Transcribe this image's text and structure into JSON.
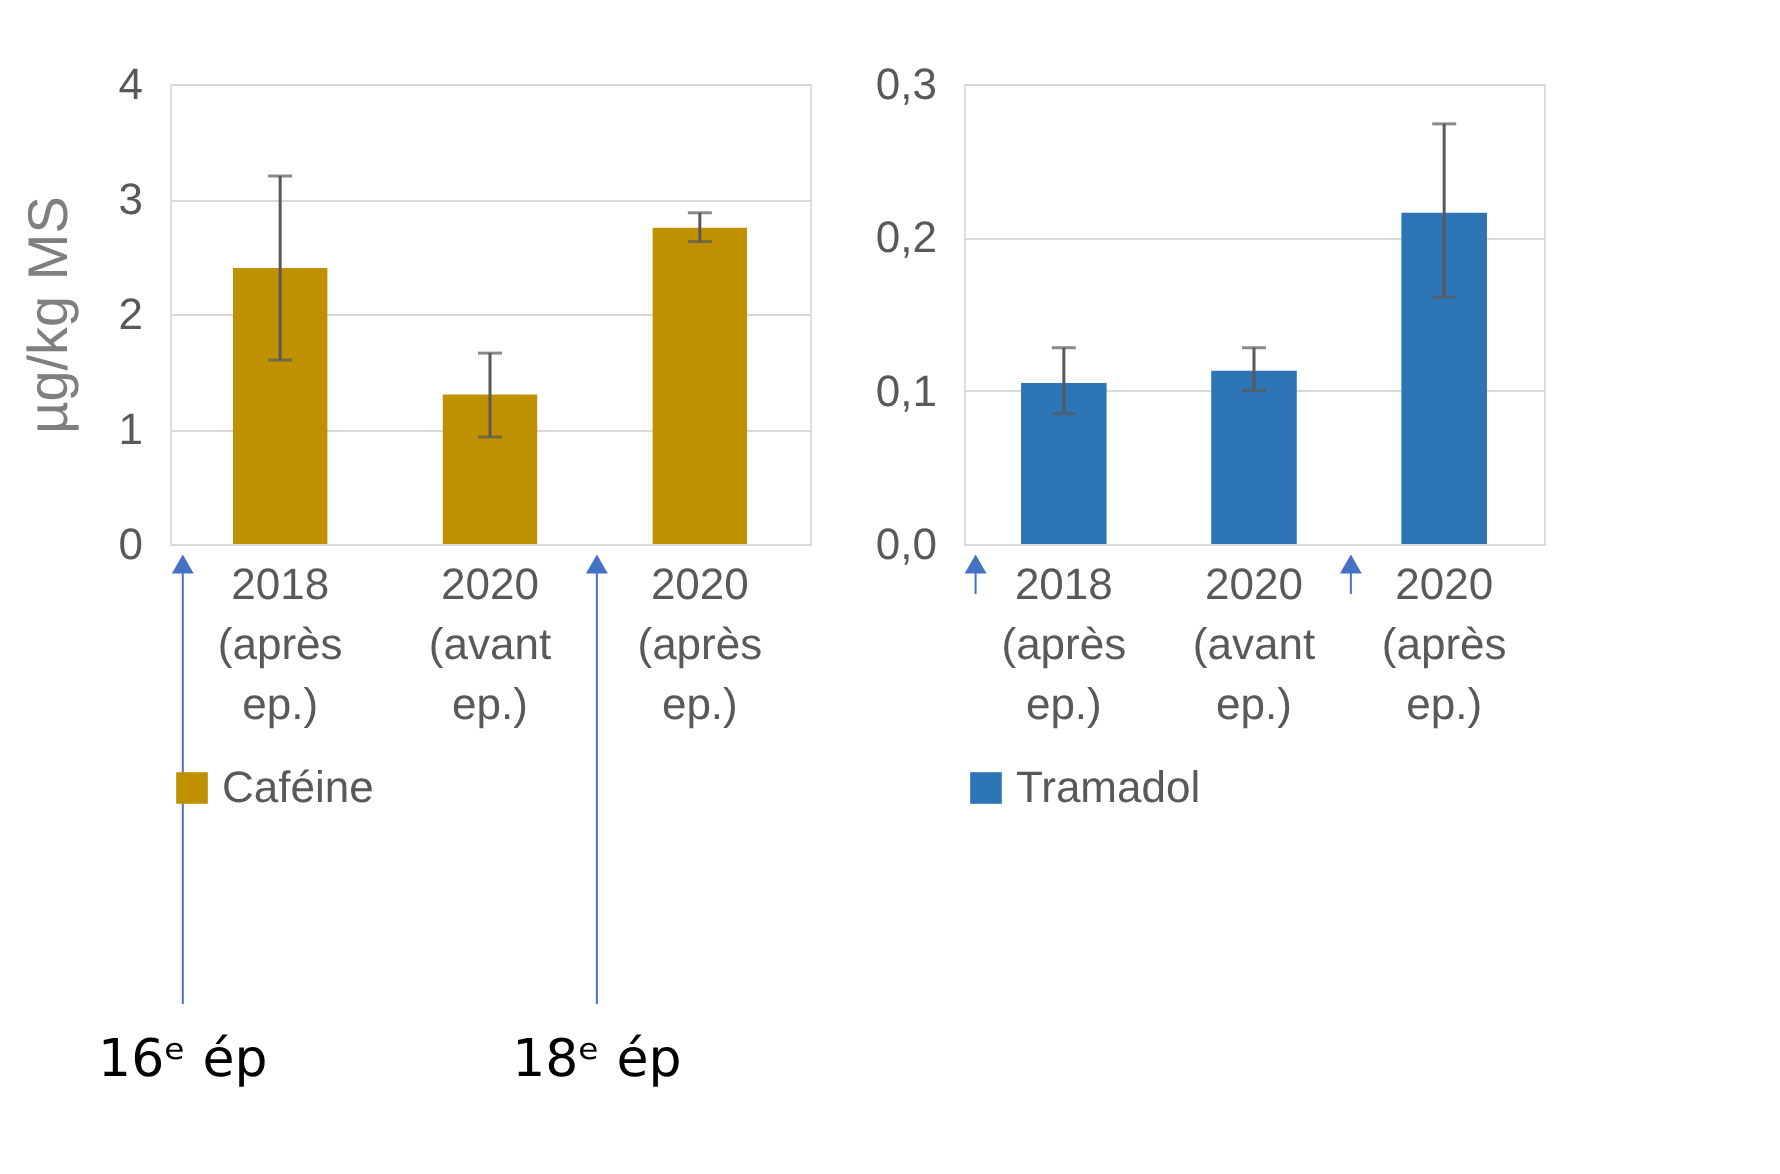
{
  "chart_data": [
    {
      "type": "bar",
      "ylabel": "µg/kg MS",
      "categories": [
        "2018 (après ep.)",
        "2020 (avant ep.)",
        "2020 (après ep.)"
      ],
      "series": [
        {
          "name": "Caféine",
          "color": "#bf9000",
          "values": [
            2.4,
            1.3,
            2.75
          ],
          "errors": [
            [
              1.6,
              3.2
            ],
            [
              0.93,
              1.66
            ],
            [
              2.63,
              2.88
            ]
          ]
        }
      ],
      "ylim": [
        0,
        4
      ],
      "yticks": [
        0,
        1,
        2,
        3,
        4
      ],
      "grid": "y",
      "legend": "bottom",
      "annotations": [
        "16ᵉ ép",
        "18ᵉ ép"
      ]
    },
    {
      "type": "bar",
      "categories": [
        "2018 (après ep.)",
        "2020 (avant ep.)",
        "2020 (après ep.)"
      ],
      "series": [
        {
          "name": "Tramadol",
          "color": "#2e75b6",
          "values": [
            0.105,
            0.113,
            0.216
          ],
          "errors": [
            [
              0.085,
              0.128
            ],
            [
              0.1,
              0.128
            ],
            [
              0.161,
              0.274
            ]
          ]
        }
      ],
      "ylim": [
        0,
        0.3
      ],
      "yticks": [
        {
          "value": 0,
          "label": "0,0"
        },
        {
          "value": 0.1,
          "label": "0,1"
        },
        {
          "value": 0.2,
          "label": "0,2"
        },
        {
          "value": 0.3,
          "label": "0,3"
        }
      ],
      "grid": "y",
      "legend": "bottom"
    }
  ]
}
